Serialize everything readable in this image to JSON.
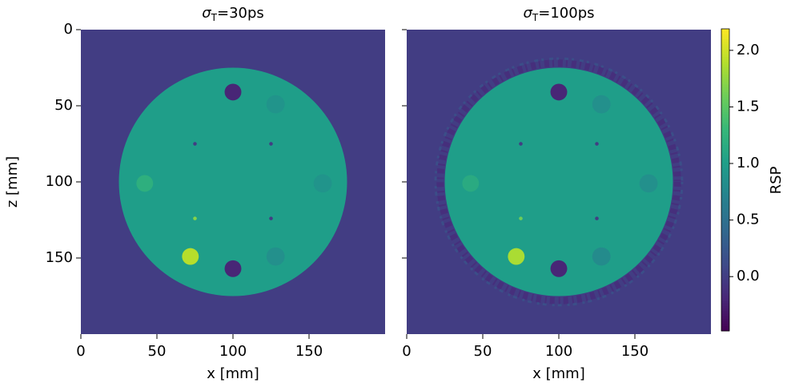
{
  "chart_data": [
    {
      "type": "heatmap",
      "title": {
        "symbol": "σ",
        "sub": "T",
        "text": "=30ps"
      },
      "xlabel": "x [mm]",
      "ylabel": "z [mm]",
      "xlim": [
        0,
        200
      ],
      "ylim": [
        0,
        200
      ],
      "y_inverted": true,
      "xticks": [
        0,
        50,
        100,
        150
      ],
      "yticks": [
        0,
        50,
        100,
        150
      ],
      "ytick_labels": true,
      "colormap": "viridis",
      "background": 0,
      "noise_ring": false,
      "phantom": {
        "x": 100,
        "z": 100,
        "r": 75,
        "value": 1.0
      },
      "inserts": [
        {
          "x": 100,
          "z": 41,
          "r": 5.5,
          "value": -0.2
        },
        {
          "x": 128,
          "z": 49,
          "r": 6,
          "value": 0.9
        },
        {
          "x": 75,
          "z": 75,
          "r": 1.2,
          "value": 0
        },
        {
          "x": 125,
          "z": 75,
          "r": 1.2,
          "value": 0
        },
        {
          "x": 42,
          "z": 101,
          "r": 5.5,
          "value": 1.2
        },
        {
          "x": 159,
          "z": 101,
          "r": 6,
          "value": 0.9
        },
        {
          "x": 75,
          "z": 124,
          "r": 1.2,
          "value": 1.7
        },
        {
          "x": 125,
          "z": 124,
          "r": 1.2,
          "value": 0
        },
        {
          "x": 72,
          "z": 149,
          "r": 5.5,
          "value": 1.9
        },
        {
          "x": 100,
          "z": 157,
          "r": 5.5,
          "value": -0.2
        },
        {
          "x": 128,
          "z": 149,
          "r": 6,
          "value": 0.85
        }
      ]
    },
    {
      "type": "heatmap",
      "title": {
        "symbol": "σ",
        "sub": "T",
        "text": "=100ps"
      },
      "xlabel": "x [mm]",
      "xlim": [
        0,
        200
      ],
      "ylim": [
        0,
        200
      ],
      "y_inverted": true,
      "xticks": [
        0,
        50,
        100,
        150
      ],
      "yticks": [
        0,
        50,
        100,
        150
      ],
      "ytick_labels": false,
      "colormap": "viridis",
      "background": 0,
      "noise_ring": true,
      "phantom": {
        "x": 100,
        "z": 100,
        "r": 75,
        "value": 1.0
      },
      "inserts": [
        {
          "x": 100,
          "z": 41,
          "r": 5.5,
          "value": -0.2
        },
        {
          "x": 128,
          "z": 49,
          "r": 6,
          "value": 0.85
        },
        {
          "x": 75,
          "z": 75,
          "r": 1.2,
          "value": 0
        },
        {
          "x": 125,
          "z": 75,
          "r": 1.2,
          "value": 0
        },
        {
          "x": 42,
          "z": 101,
          "r": 5.5,
          "value": 1.15
        },
        {
          "x": 159,
          "z": 101,
          "r": 6,
          "value": 0.85
        },
        {
          "x": 75,
          "z": 124,
          "r": 1.2,
          "value": 1.6
        },
        {
          "x": 125,
          "z": 124,
          "r": 1.2,
          "value": 0
        },
        {
          "x": 72,
          "z": 149,
          "r": 5.5,
          "value": 1.85
        },
        {
          "x": 100,
          "z": 157,
          "r": 5.5,
          "value": -0.2
        },
        {
          "x": 128,
          "z": 149,
          "r": 6,
          "value": 0.8
        }
      ]
    },
    {
      "type": "colorbar",
      "label": "RSP",
      "colormap": "viridis",
      "clim": [
        -0.48,
        2.19
      ],
      "ticks": [
        {
          "value": 0,
          "label": "0.0"
        },
        {
          "value": 0.5,
          "label": "0.5"
        },
        {
          "value": 1,
          "label": "1.0"
        },
        {
          "value": 1.5,
          "label": "1.5"
        },
        {
          "value": 2,
          "label": "2.0"
        }
      ]
    }
  ]
}
